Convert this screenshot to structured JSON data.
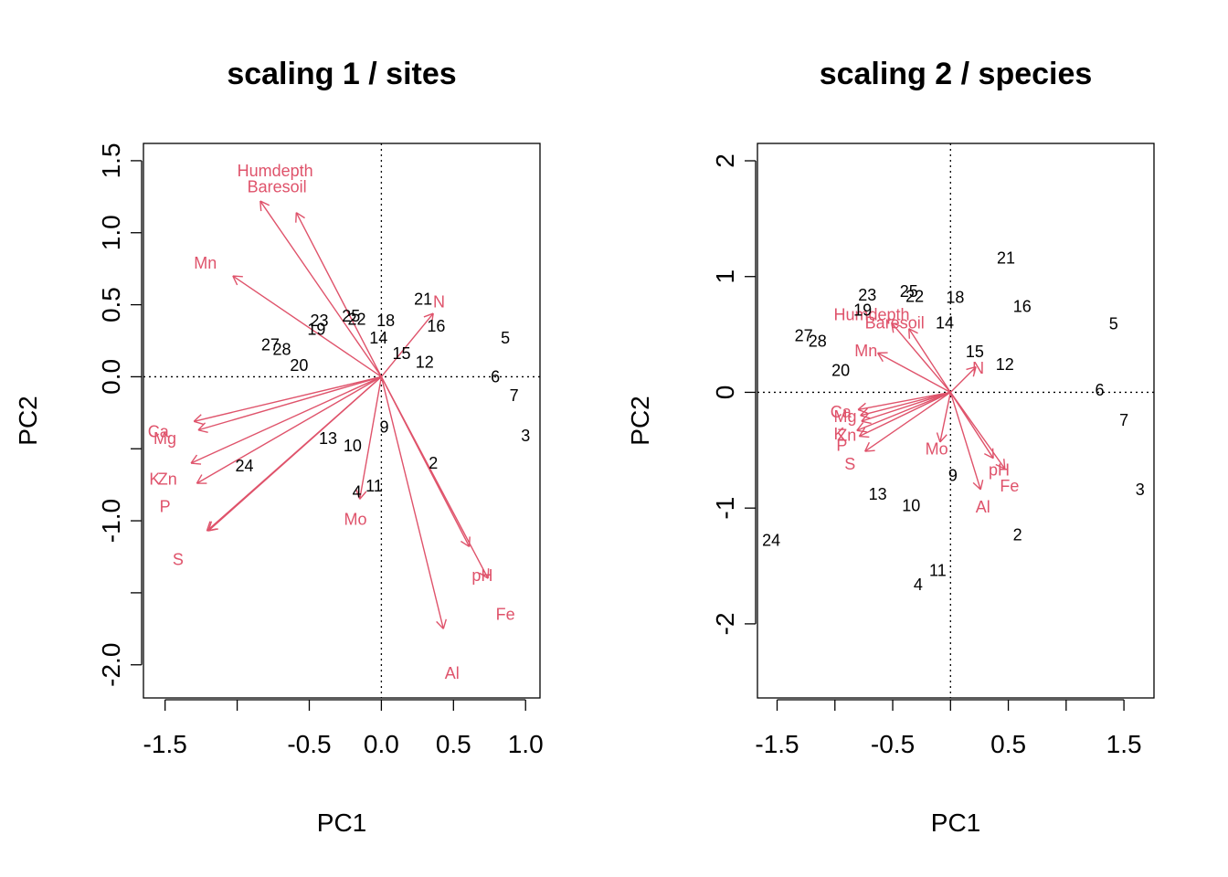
{
  "colors": {
    "arrow": "#DF536B",
    "text": "#000000"
  },
  "chart_data": [
    {
      "type": "scatter",
      "title": "scaling 1 / sites",
      "xlabel": "PC1",
      "ylabel": "PC2",
      "xlim": [
        -1.65,
        1.1
      ],
      "ylim": [
        -2.23,
        1.62
      ],
      "xticks": [
        -1.5,
        -1.0,
        -0.5,
        0.0,
        0.5,
        1.0
      ],
      "xtick_labels": [
        "-1.5",
        "",
        "-0.5",
        "0.0",
        "0.5",
        "1.0"
      ],
      "yticks": [
        -2.0,
        -1.5,
        -1.0,
        -0.5,
        0.0,
        0.5,
        1.0,
        1.5
      ],
      "ytick_labels": [
        "-2.0",
        "",
        "-1.0",
        "",
        "0.0",
        "0.5",
        "1.0",
        "1.5"
      ],
      "grid": false,
      "sites": [
        {
          "label": "23",
          "x": -0.43,
          "y": 0.39
        },
        {
          "label": "19",
          "x": -0.45,
          "y": 0.33
        },
        {
          "label": "25",
          "x": -0.21,
          "y": 0.42
        },
        {
          "label": "22",
          "x": -0.17,
          "y": 0.4
        },
        {
          "label": "18",
          "x": 0.03,
          "y": 0.39
        },
        {
          "label": "14",
          "x": -0.02,
          "y": 0.27
        },
        {
          "label": "21",
          "x": 0.29,
          "y": 0.54
        },
        {
          "label": "16",
          "x": 0.38,
          "y": 0.35
        },
        {
          "label": "15",
          "x": 0.14,
          "y": 0.16
        },
        {
          "label": "12",
          "x": 0.3,
          "y": 0.1
        },
        {
          "label": "27",
          "x": -0.77,
          "y": 0.22
        },
        {
          "label": "28",
          "x": -0.69,
          "y": 0.19
        },
        {
          "label": "20",
          "x": -0.57,
          "y": 0.08
        },
        {
          "label": "5",
          "x": 0.86,
          "y": 0.27
        },
        {
          "label": "6",
          "x": 0.79,
          "y": 0.0
        },
        {
          "label": "7",
          "x": 0.92,
          "y": -0.13
        },
        {
          "label": "3",
          "x": 1.0,
          "y": -0.41
        },
        {
          "label": "9",
          "x": 0.02,
          "y": -0.35
        },
        {
          "label": "13",
          "x": -0.37,
          "y": -0.43
        },
        {
          "label": "10",
          "x": -0.2,
          "y": -0.48
        },
        {
          "label": "2",
          "x": 0.36,
          "y": -0.6
        },
        {
          "label": "24",
          "x": -0.95,
          "y": -0.62
        },
        {
          "label": "11",
          "x": -0.05,
          "y": -0.76
        },
        {
          "label": "4",
          "x": -0.17,
          "y": -0.8
        }
      ],
      "vectors": [
        {
          "label": "Humdepth",
          "x": -0.84,
          "y": 1.22,
          "lx": -1.0,
          "ly": 1.43,
          "anchor": "start"
        },
        {
          "label": "Baresoil",
          "x": -0.59,
          "y": 1.14,
          "lx": -0.93,
          "ly": 1.32,
          "anchor": "start"
        },
        {
          "label": "Mn",
          "x": -1.03,
          "y": 0.7,
          "lx": -1.3,
          "ly": 0.79,
          "anchor": "start"
        },
        {
          "label": "N",
          "x": 0.36,
          "y": 0.44,
          "lx": 0.4,
          "ly": 0.52,
          "anchor": "middle"
        },
        {
          "label": "Ca",
          "x": -1.3,
          "y": -0.31,
          "lx": -1.62,
          "ly": -0.38,
          "anchor": "start"
        },
        {
          "label": "Mg",
          "x": -1.27,
          "y": -0.37,
          "lx": -1.58,
          "ly": -0.43,
          "anchor": "start"
        },
        {
          "label": "K",
          "x": -1.32,
          "y": -0.6,
          "lx": -1.61,
          "ly": -0.71,
          "anchor": "start"
        },
        {
          "label": "Zn",
          "x": -1.28,
          "y": -0.74,
          "lx": -1.55,
          "ly": -0.71,
          "anchor": "start"
        },
        {
          "label": "P",
          "x": -1.2,
          "y": -1.07,
          "lx": -1.5,
          "ly": -0.9,
          "anchor": "middle"
        },
        {
          "label": "S",
          "x": -1.21,
          "y": -1.07,
          "lx": -1.41,
          "ly": -1.27,
          "anchor": "middle"
        },
        {
          "label": "Mo",
          "x": -0.15,
          "y": -0.85,
          "lx": -0.18,
          "ly": -0.99,
          "anchor": "middle"
        },
        {
          "label": "pH",
          "x": 0.74,
          "y": -1.4,
          "lx": 0.7,
          "ly": -1.38,
          "anchor": "middle"
        },
        {
          "label": "Fe",
          "x": 0.61,
          "y": -1.18,
          "lx": 0.86,
          "ly": -1.65,
          "anchor": "middle"
        },
        {
          "label": "Al",
          "x": 0.43,
          "y": -1.75,
          "lx": 0.49,
          "ly": -2.06,
          "anchor": "middle"
        }
      ]
    },
    {
      "type": "scatter",
      "title": "scaling 2 / species",
      "xlabel": "PC1",
      "ylabel": "PC2",
      "xlim": [
        -1.67,
        1.76
      ],
      "ylim": [
        -2.64,
        2.15
      ],
      "xticks": [
        -1.5,
        -1.0,
        -0.5,
        0.0,
        0.5,
        1.0,
        1.5
      ],
      "xtick_labels": [
        "-1.5",
        "",
        "-0.5",
        "",
        "0.5",
        "",
        "1.5"
      ],
      "yticks": [
        -2,
        -1,
        0,
        1,
        2
      ],
      "ytick_labels": [
        "-2",
        "-1",
        "0",
        "1",
        "2"
      ],
      "grid": false,
      "sites": [
        {
          "label": "23",
          "x": -0.72,
          "y": 0.84
        },
        {
          "label": "19",
          "x": -0.76,
          "y": 0.71
        },
        {
          "label": "25",
          "x": -0.36,
          "y": 0.87
        },
        {
          "label": "22",
          "x": -0.31,
          "y": 0.83
        },
        {
          "label": "18",
          "x": 0.04,
          "y": 0.82
        },
        {
          "label": "14",
          "x": -0.05,
          "y": 0.6
        },
        {
          "label": "21",
          "x": 0.48,
          "y": 1.16
        },
        {
          "label": "16",
          "x": 0.62,
          "y": 0.74
        },
        {
          "label": "15",
          "x": 0.21,
          "y": 0.35
        },
        {
          "label": "12",
          "x": 0.47,
          "y": 0.24
        },
        {
          "label": "27",
          "x": -1.27,
          "y": 0.49
        },
        {
          "label": "28",
          "x": -1.15,
          "y": 0.44
        },
        {
          "label": "20",
          "x": -0.95,
          "y": 0.19
        },
        {
          "label": "5",
          "x": 1.41,
          "y": 0.59
        },
        {
          "label": "6",
          "x": 1.29,
          "y": 0.02
        },
        {
          "label": "7",
          "x": 1.5,
          "y": -0.24
        },
        {
          "label": "3",
          "x": 1.64,
          "y": -0.84
        },
        {
          "label": "9",
          "x": 0.02,
          "y": -0.72
        },
        {
          "label": "13",
          "x": -0.63,
          "y": -0.88
        },
        {
          "label": "10",
          "x": -0.34,
          "y": -0.98
        },
        {
          "label": "2",
          "x": 0.58,
          "y": -1.23
        },
        {
          "label": "24",
          "x": -1.55,
          "y": -1.28
        },
        {
          "label": "11",
          "x": -0.11,
          "y": -1.54
        },
        {
          "label": "4",
          "x": -0.28,
          "y": -1.66
        }
      ],
      "vectors": [
        {
          "label": "Humdepth",
          "x": -0.51,
          "y": 0.6,
          "lx": -1.01,
          "ly": 0.67,
          "anchor": "start"
        },
        {
          "label": "Baresoil",
          "x": -0.36,
          "y": 0.55,
          "lx": -0.74,
          "ly": 0.6,
          "anchor": "start"
        },
        {
          "label": "Mn",
          "x": -0.63,
          "y": 0.34,
          "lx": -0.83,
          "ly": 0.36,
          "anchor": "start"
        },
        {
          "label": "N",
          "x": 0.22,
          "y": 0.22,
          "lx": 0.24,
          "ly": 0.21,
          "anchor": "middle"
        },
        {
          "label": "Ca",
          "x": -0.8,
          "y": -0.15,
          "lx": -1.04,
          "ly": -0.17,
          "anchor": "start"
        },
        {
          "label": "Mg",
          "x": -0.78,
          "y": -0.2,
          "lx": -1.01,
          "ly": -0.21,
          "anchor": "start"
        },
        {
          "label": "K",
          "x": -0.81,
          "y": -0.33,
          "lx": -1.01,
          "ly": -0.36,
          "anchor": "start"
        },
        {
          "label": "Zn",
          "x": -0.79,
          "y": -0.38,
          "lx": -0.98,
          "ly": -0.37,
          "anchor": "start"
        },
        {
          "label": "P",
          "x": -0.77,
          "y": -0.25,
          "lx": -0.94,
          "ly": -0.46,
          "anchor": "middle"
        },
        {
          "label": "S",
          "x": -0.74,
          "y": -0.51,
          "lx": -0.87,
          "ly": -0.62,
          "anchor": "middle"
        },
        {
          "label": "Mo",
          "x": -0.09,
          "y": -0.43,
          "lx": -0.12,
          "ly": -0.49,
          "anchor": "middle"
        },
        {
          "label": "pH",
          "x": 0.47,
          "y": -0.66,
          "lx": 0.42,
          "ly": -0.67,
          "anchor": "middle"
        },
        {
          "label": "Fe",
          "x": 0.37,
          "y": -0.57,
          "lx": 0.51,
          "ly": -0.81,
          "anchor": "middle"
        },
        {
          "label": "Al",
          "x": 0.26,
          "y": -0.84,
          "lx": 0.28,
          "ly": -0.99,
          "anchor": "middle"
        }
      ]
    }
  ]
}
